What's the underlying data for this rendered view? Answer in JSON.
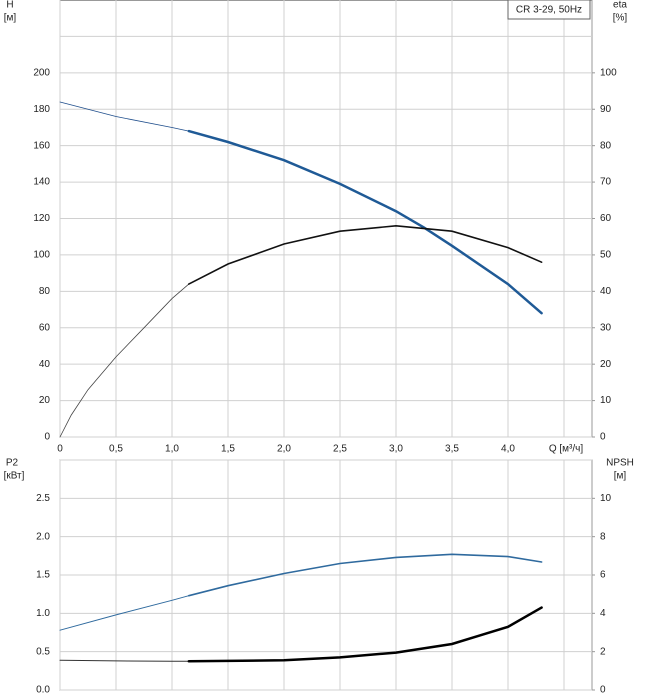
{
  "chart_data": [
    {
      "type": "line",
      "title": "CR 3-29, 50Hz",
      "ylabel": "H",
      "yunit": "[м]",
      "y2label": "eta",
      "y2unit": "[%]",
      "xlabel": "Q [м³/ч]",
      "xlim": [
        0,
        4.75
      ],
      "ylim": [
        0,
        240
      ],
      "y2lim": [
        0,
        120
      ],
      "xticks": [
        0,
        {
          "value": 0.5,
          "label": "0,5"
        },
        {
          "value": 1,
          "label": "1,0"
        },
        {
          "value": 1.5,
          "label": "1,5"
        },
        {
          "value": 2,
          "label": "2,0"
        },
        {
          "value": 2.5,
          "label": "2,5"
        },
        {
          "value": 3,
          "label": "3,0"
        },
        {
          "value": 3.5,
          "label": "3,5"
        },
        {
          "value": 4,
          "label": "4,0"
        }
      ],
      "yticks": [
        0,
        20,
        40,
        60,
        80,
        100,
        120,
        140,
        160,
        180,
        200
      ],
      "y2ticks": [
        0,
        10,
        20,
        30,
        40,
        50,
        60,
        70,
        80,
        90,
        100
      ],
      "grid": true,
      "series": [
        {
          "color": "#1f4e8c",
          "width": 0.8,
          "x": [
            0,
            0.5,
            1.0,
            1.15
          ],
          "values": [
            184,
            176,
            170,
            168
          ]
        },
        {
          "color": "#1f5a96",
          "width": 2.5,
          "x": [
            1.15,
            1.5,
            2.0,
            2.5,
            3.0,
            3.25,
            3.5,
            4.0,
            4.3
          ],
          "values": [
            168,
            162,
            152,
            139,
            124,
            115,
            105,
            84,
            68
          ]
        },
        {
          "color": "#444444",
          "width": 0.8,
          "axis": "y2",
          "x": [
            0,
            0.1,
            0.25,
            0.5,
            0.75,
            1.0,
            1.15
          ],
          "values": [
            0,
            6,
            13,
            22,
            30,
            38,
            42
          ]
        },
        {
          "color": "#111111",
          "width": 1.6,
          "axis": "y2",
          "x": [
            1.15,
            1.5,
            2.0,
            2.5,
            3.0,
            3.5,
            4.0,
            4.3
          ],
          "values": [
            42,
            47.5,
            53,
            56.5,
            58,
            56.5,
            52,
            48
          ]
        }
      ]
    },
    {
      "type": "line",
      "ylabel": "P2",
      "yunit": "[кВт]",
      "y2label": "NPSH",
      "y2unit": "[м]",
      "xlim": [
        0,
        4.75
      ],
      "ylim": [
        0,
        3
      ],
      "y2lim": [
        0,
        12
      ],
      "yticks": [
        {
          "value": 0,
          "label": "0.0"
        },
        0.5,
        {
          "value": 1,
          "label": "1.0"
        },
        1.5,
        {
          "value": 2,
          "label": "2.0"
        },
        2.5
      ],
      "y2ticks": [
        0,
        2,
        4,
        6,
        8,
        10
      ],
      "grid": true,
      "series": [
        {
          "color": "#2f6a9e",
          "width": 1,
          "x": [
            0,
            0.5,
            1.0,
            1.15
          ],
          "values": [
            0.78,
            0.98,
            1.17,
            1.23
          ]
        },
        {
          "color": "#2f6a9e",
          "width": 1.6,
          "x": [
            1.15,
            1.5,
            2.0,
            2.5,
            3.0,
            3.5,
            4.0,
            4.3
          ],
          "values": [
            1.23,
            1.36,
            1.52,
            1.65,
            1.73,
            1.77,
            1.74,
            1.67
          ]
        },
        {
          "color": "#333333",
          "width": 1,
          "axis": "y2",
          "x": [
            0,
            0.5,
            1.0,
            1.15
          ],
          "values": [
            1.55,
            1.52,
            1.5,
            1.5
          ]
        },
        {
          "color": "#000000",
          "width": 2.5,
          "axis": "y2",
          "x": [
            1.15,
            2.0,
            2.5,
            3.0,
            3.5,
            4.0,
            4.3
          ],
          "values": [
            1.5,
            1.55,
            1.7,
            1.95,
            2.4,
            3.3,
            4.3
          ]
        }
      ]
    }
  ]
}
